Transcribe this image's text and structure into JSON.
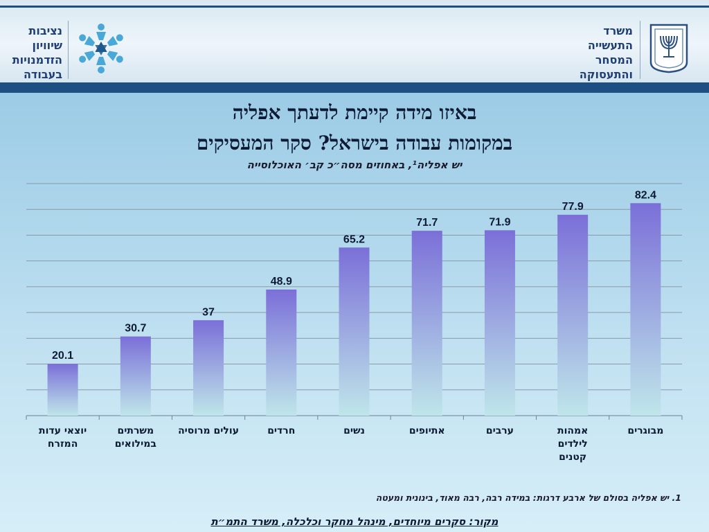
{
  "header": {
    "left_logo_lines": [
      "נציבות",
      "שיוויון",
      "הזדמנויות",
      "בעבודה"
    ],
    "right_logo_lines": [
      "משרד",
      "התעשייה",
      "המסחר",
      "והתעסוקה"
    ],
    "left_emblem_icon": "star-of-people-emblem-icon",
    "right_emblem_icon": "menorah-emblem-icon"
  },
  "colors": {
    "bar_top": "#7b6fd8",
    "bar_bottom": "#bfe6ea",
    "band": "#1d4f82",
    "gridline": "#8a98a8"
  },
  "chart_data": {
    "type": "bar",
    "title_line1": "באיזו מידה קיימת לדעתך אפליה",
    "title_line2": "במקומות עבודה בישראל? סקר המעסיקים",
    "subtitle": "יש אפליה¹, באחוזים מסה״כ קב׳ האוכלוסייה",
    "categories": [
      [
        "מבוגרים"
      ],
      [
        "אמהות",
        "לילדים",
        "קטנים"
      ],
      [
        "ערבים"
      ],
      [
        "אתיופים"
      ],
      [
        "נשים"
      ],
      [
        "חרדים"
      ],
      [
        "עולים מרוסיה"
      ],
      [
        "משרתים",
        "במילואים"
      ],
      [
        "יוצאי עדות",
        "המזרח"
      ]
    ],
    "values": [
      82.4,
      77.9,
      71.9,
      71.7,
      65.2,
      48.9,
      37,
      30.7,
      20.1
    ],
    "value_labels": [
      "82.4",
      "77.9",
      "71.9",
      "71.7",
      "65.2",
      "48.9",
      "37",
      "30.7",
      "20.1"
    ],
    "ylim": [
      0,
      90
    ],
    "gridlines_every": 10,
    "grid": true,
    "category_order": "right-to-left"
  },
  "footnote": "1. יש אפליה בסולם של ארבע דרגות: במידה רבה, רבה מאוד, בינונית ומעטה",
  "source": "מקור: סקרים מיוחדים, מינהל מחקר וכלכלה, משרד התמ״ת"
}
